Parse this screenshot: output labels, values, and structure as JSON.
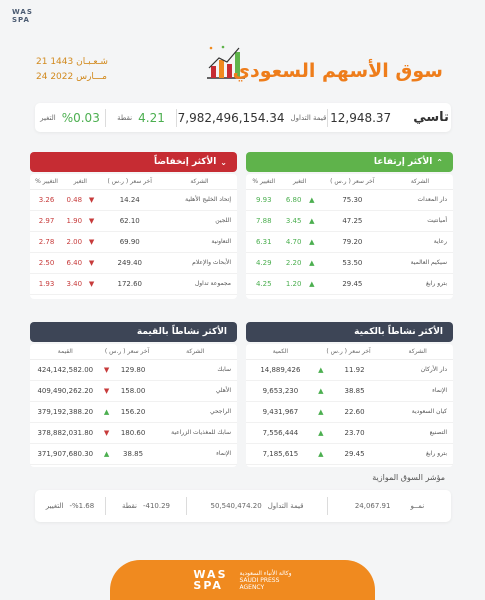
{
  "header": {
    "logo_top": "WAS",
    "logo_bottom": "SPA",
    "date_hijri": "21 شـعـبـان 1443",
    "date_greg": "24 مـــارس 2022",
    "title": "سوق الأسهم السعودي"
  },
  "tasi": {
    "name": "تاسي",
    "value": "12,948.37",
    "turnover_label": "قيمة التداول",
    "turnover": "7,982,496,154.34",
    "points_label": "نقطة",
    "points": "4.21",
    "change_label": "التغير",
    "change": "%0.03"
  },
  "gainers": {
    "title": "الأكثر إرتفاعا",
    "header_color": "#5fb34b",
    "columns": [
      "الشركة",
      "آخر سعر ( ر.س )",
      "التغير",
      "التغيير %"
    ],
    "rows": [
      {
        "name": "دار المعدات",
        "price": "75.30",
        "change": "6.80",
        "pct": "9.93"
      },
      {
        "name": "أميانتيت",
        "price": "47.25",
        "change": "3.45",
        "pct": "7.88"
      },
      {
        "name": "رعاية",
        "price": "79.20",
        "change": "4.70",
        "pct": "6.31"
      },
      {
        "name": "سيكيم العالمية",
        "price": "53.50",
        "change": "2.20",
        "pct": "4.29"
      },
      {
        "name": "بترو رابغ",
        "price": "29.45",
        "change": "1.20",
        "pct": "4.25"
      }
    ]
  },
  "losers": {
    "title": "الأكثر إنخفاضاً",
    "header_color": "#c62c33",
    "columns": [
      "الشركة",
      "آخر سعر ( ر.س )",
      "التغير",
      "التغيير %"
    ],
    "rows": [
      {
        "name": "إتحاد الخليج الأهلية",
        "price": "14.24",
        "change": "0.48",
        "pct": "3.26"
      },
      {
        "name": "اللجين",
        "price": "62.10",
        "change": "1.90",
        "pct": "2.97"
      },
      {
        "name": "التعاونية",
        "price": "69.90",
        "change": "2.00",
        "pct": "2.78"
      },
      {
        "name": "الأبحاث والإعلام",
        "price": "249.40",
        "change": "6.40",
        "pct": "2.50"
      },
      {
        "name": "مجموعة تداول",
        "price": "172.60",
        "change": "3.40",
        "pct": "1.93"
      }
    ]
  },
  "by_volume": {
    "title": "الأكثر نشاطاً بالكمية",
    "header_color": "#3d4556",
    "columns": [
      "الشركة",
      "آخر سعر ( ر.س )",
      "الكمية"
    ],
    "rows": [
      {
        "name": "دار الأركان",
        "price": "11.92",
        "qty": "14,889,426",
        "dir": "up"
      },
      {
        "name": "الإنماء",
        "price": "38.85",
        "qty": "9,653,230",
        "dir": "up"
      },
      {
        "name": "كيان السعودية",
        "price": "22.60",
        "qty": "9,431,967",
        "dir": "up"
      },
      {
        "name": "التصنيع",
        "price": "23.70",
        "qty": "7,556,444",
        "dir": "up"
      },
      {
        "name": "بترو رابغ",
        "price": "29.45",
        "qty": "7,185,615",
        "dir": "up"
      }
    ]
  },
  "by_value": {
    "title": "الأكثر نشاطاً بالقيمة",
    "header_color": "#3d4556",
    "columns": [
      "الشركة",
      "آخر سعر ( ر.س )",
      "القيمة"
    ],
    "rows": [
      {
        "name": "سابك",
        "price": "129.80",
        "val": "424,142,582.00",
        "dir": "down"
      },
      {
        "name": "الأهلي",
        "price": "158.00",
        "val": "409,490,262.20",
        "dir": "down"
      },
      {
        "name": "الراجحي",
        "price": "156.20",
        "val": "379,192,388.20",
        "dir": "up"
      },
      {
        "name": "سابك للمغذيات الزراعية",
        "price": "180.60",
        "val": "378,882,031.80",
        "dir": "down"
      },
      {
        "name": "الإنماء",
        "price": "38.85",
        "val": "371,907,680.30",
        "dir": "up"
      }
    ]
  },
  "parallel": {
    "label": "مؤشر السوق الموازية",
    "name": "نمــو",
    "value": "24,067.91",
    "turnover_label": "قيمة التداول",
    "turnover": "50,540,474.20",
    "points_label": "نقطة",
    "points": "-410.29",
    "change_label": "التغيير",
    "change": "-%1.68"
  },
  "footer": {
    "logo_top": "WAS",
    "logo_bottom": "SPA",
    "ar": "وكالة الأنباء السعودية",
    "en1": "SAUDI PRESS",
    "en2": "AGENCY"
  }
}
